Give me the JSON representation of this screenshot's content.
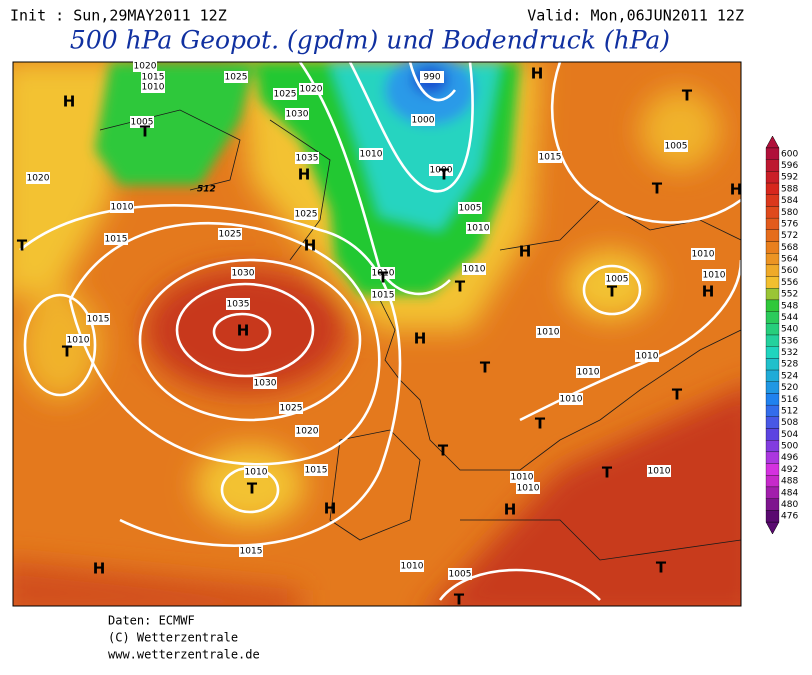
{
  "header": {
    "init": "Init : Sun,29MAY2011 12Z",
    "valid": "Valid: Mon,06JUN2011 12Z",
    "title": "500 hPa Geopot. (gpdm) und Bodendruck (hPa)"
  },
  "map": {
    "isobar_labels": [
      1020,
      1015,
      1010,
      1025,
      1005,
      1020,
      1010,
      1015,
      1025,
      1030,
      1035,
      1030,
      1025,
      1020,
      1015,
      1010,
      1015,
      1010,
      1015,
      1010,
      1005,
      1010,
      1010,
      1010,
      1010,
      1010,
      1010,
      1010,
      1010,
      1010,
      1005,
      1005,
      1015,
      1010,
      1010,
      1005,
      1000,
      1000,
      990,
      1010,
      1035,
      1030,
      1025,
      1020,
      1025,
      1010,
      1015
    ],
    "geopotential_label": 512,
    "pressure_centers": [
      "H",
      "T",
      "H",
      "H",
      "H",
      "T",
      "T",
      "H",
      "T",
      "H",
      "T",
      "T",
      "H",
      "H",
      "T",
      "H",
      "T",
      "H",
      "T",
      "T",
      "T",
      "H",
      "H",
      "T",
      "T",
      "T",
      "T",
      "T",
      "T"
    ]
  },
  "colorbar": {
    "ticks": [
      600,
      596,
      592,
      588,
      584,
      580,
      576,
      572,
      568,
      564,
      560,
      556,
      552,
      548,
      544,
      540,
      536,
      532,
      528,
      524,
      520,
      516,
      512,
      508,
      504,
      500,
      496,
      492,
      488,
      484,
      480,
      476
    ]
  },
  "footer": {
    "source": "Daten: ECMWF",
    "copyright": "(C) Wetterzentrale",
    "url": "www.wetterzentrale.de"
  }
}
